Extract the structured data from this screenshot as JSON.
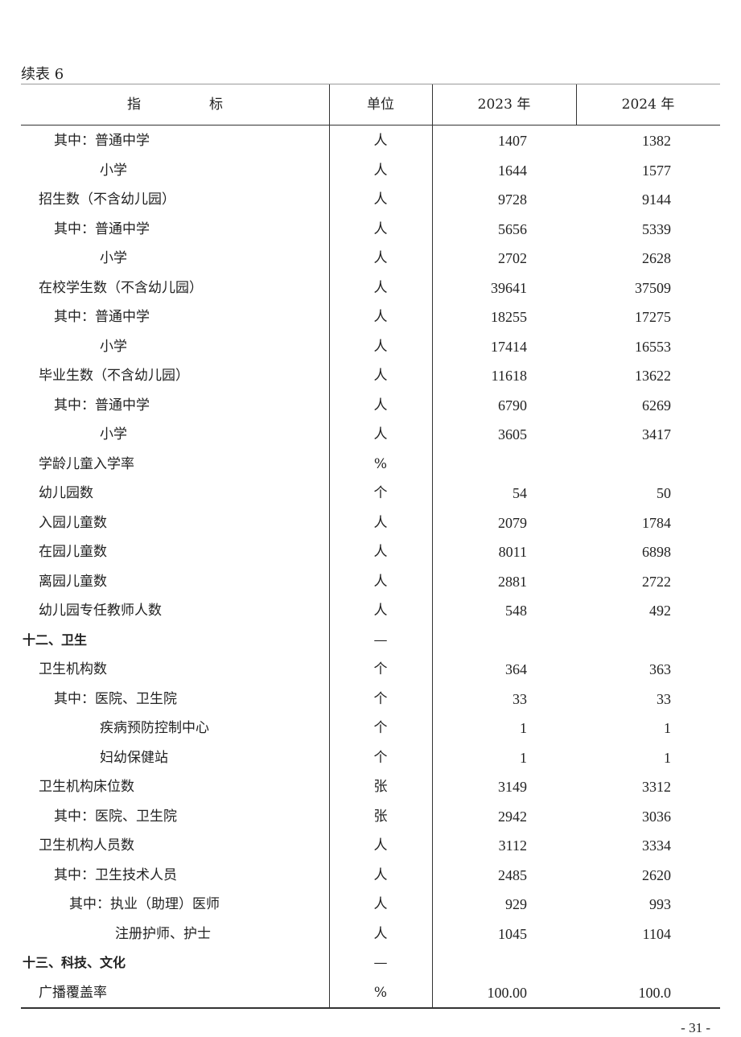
{
  "caption": "续表 6",
  "headers": {
    "indicator": "指　　　　　标",
    "unit": "单位",
    "y2023": "2023 年",
    "y2024": "2024 年"
  },
  "rows": [
    {
      "level": 2,
      "label": "其中：普通中学",
      "unit": "人",
      "v2023": "1407",
      "v2024": "1382"
    },
    {
      "level": 3,
      "label": "小学",
      "unit": "人",
      "v2023": "1644",
      "v2024": "1577"
    },
    {
      "level": 1,
      "label": "招生数（不含幼儿园）",
      "unit": "人",
      "v2023": "9728",
      "v2024": "9144"
    },
    {
      "level": 2,
      "label": "其中：普通中学",
      "unit": "人",
      "v2023": "5656",
      "v2024": "5339"
    },
    {
      "level": 3,
      "label": "小学",
      "unit": "人",
      "v2023": "2702",
      "v2024": "2628"
    },
    {
      "level": 1,
      "label": "在校学生数（不含幼儿园）",
      "unit": "人",
      "v2023": "39641",
      "v2024": "37509"
    },
    {
      "level": 2,
      "label": "其中：普通中学",
      "unit": "人",
      "v2023": "18255",
      "v2024": "17275"
    },
    {
      "level": 3,
      "label": "小学",
      "unit": "人",
      "v2023": "17414",
      "v2024": "16553"
    },
    {
      "level": 1,
      "label": "毕业生数（不含幼儿园）",
      "unit": "人",
      "v2023": "11618",
      "v2024": "13622"
    },
    {
      "level": 2,
      "label": "其中：普通中学",
      "unit": "人",
      "v2023": "6790",
      "v2024": "6269"
    },
    {
      "level": 3,
      "label": "小学",
      "unit": "人",
      "v2023": "3605",
      "v2024": "3417"
    },
    {
      "level": 1,
      "label": "学龄儿童入学率",
      "unit": "%",
      "v2023": "",
      "v2024": ""
    },
    {
      "level": 1,
      "label": "幼儿园数",
      "unit": "个",
      "v2023": "54",
      "v2024": "50"
    },
    {
      "level": 1,
      "label": "入园儿童数",
      "unit": "人",
      "v2023": "2079",
      "v2024": "1784"
    },
    {
      "level": 1,
      "label": "在园儿童数",
      "unit": "人",
      "v2023": "8011",
      "v2024": "6898"
    },
    {
      "level": 1,
      "label": "离园儿童数",
      "unit": "人",
      "v2023": "2881",
      "v2024": "2722"
    },
    {
      "level": 1,
      "label": "幼儿园专任教师人数",
      "unit": "人",
      "v2023": "548",
      "v2024": "492"
    },
    {
      "level": 0,
      "label": "十二、卫生",
      "unit": "—",
      "v2023": "",
      "v2024": ""
    },
    {
      "level": 1,
      "label": "卫生机构数",
      "unit": "个",
      "v2023": "364",
      "v2024": "363"
    },
    {
      "level": 2,
      "label": "其中：医院、卫生院",
      "unit": "个",
      "v2023": "33",
      "v2024": "33"
    },
    {
      "level": 3,
      "label": "疾病预防控制中心",
      "unit": "个",
      "v2023": "1",
      "v2024": "1"
    },
    {
      "level": 3,
      "label": "妇幼保健站",
      "unit": "个",
      "v2023": "1",
      "v2024": "1"
    },
    {
      "level": 1,
      "label": "卫生机构床位数",
      "unit": "张",
      "v2023": "3149",
      "v2024": "3312"
    },
    {
      "level": 2,
      "label": "其中：医院、卫生院",
      "unit": "张",
      "v2023": "2942",
      "v2024": "3036"
    },
    {
      "level": 1,
      "label": "卫生机构人员数",
      "unit": "人",
      "v2023": "3112",
      "v2024": "3334"
    },
    {
      "level": 2,
      "label": "其中：卫生技术人员",
      "unit": "人",
      "v2023": "2485",
      "v2024": "2620"
    },
    {
      "level": 4,
      "label": "其中：执业（助理）医师",
      "unit": "人",
      "v2023": "929",
      "v2024": "993"
    },
    {
      "level": 5,
      "label": "注册护师、护士",
      "unit": "人",
      "v2023": "1045",
      "v2024": "1104"
    },
    {
      "level": 0,
      "label": "十三、科技、文化",
      "unit": "—",
      "v2023": "",
      "v2024": ""
    },
    {
      "level": 1,
      "label": "广播覆盖率",
      "unit": "%",
      "v2023": "100.00",
      "v2024": "100.0"
    }
  ],
  "page_number": "- 31 -"
}
